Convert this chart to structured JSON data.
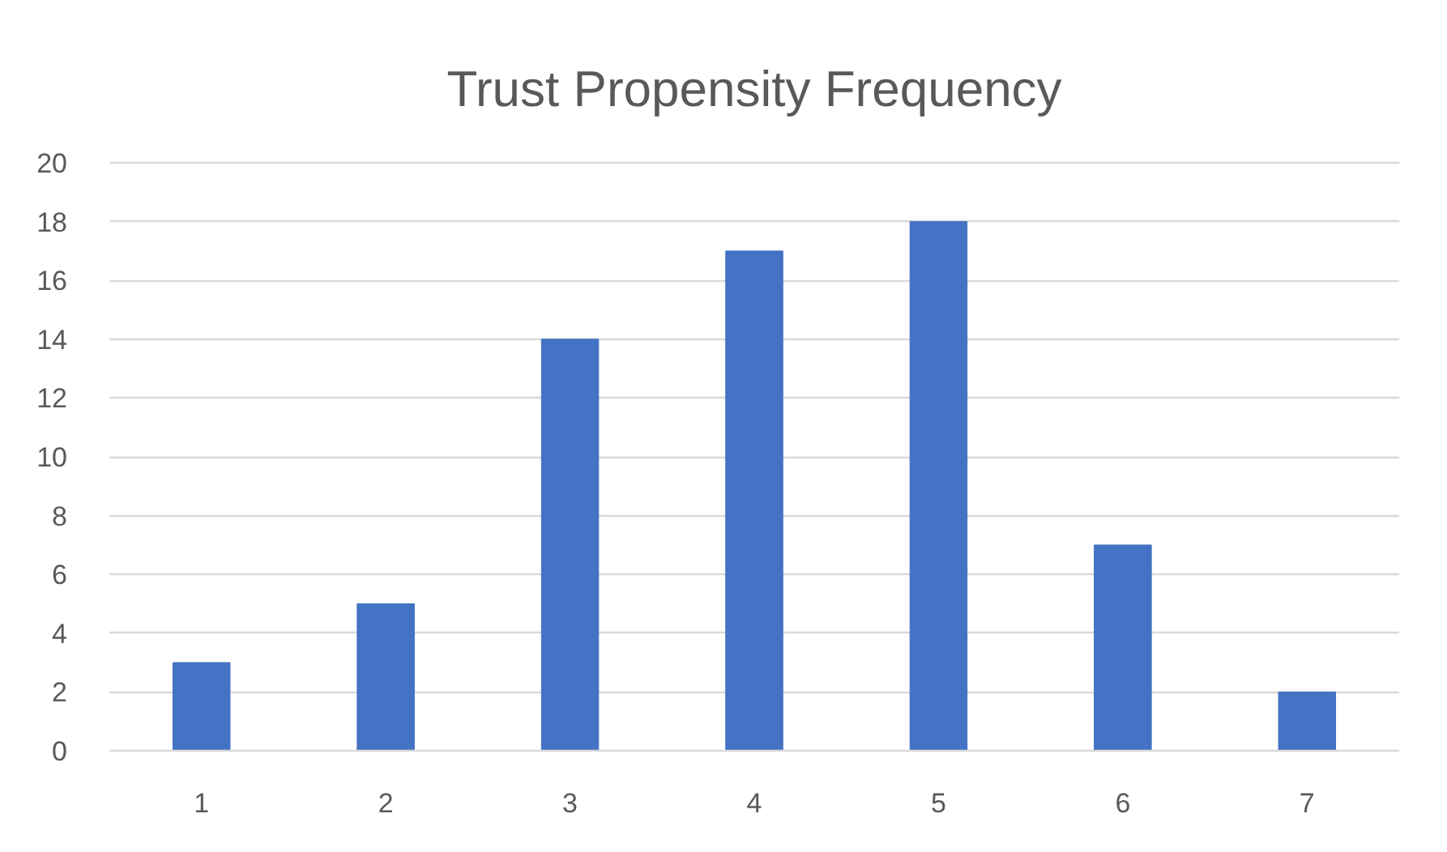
{
  "chart_data": {
    "type": "bar",
    "title": "Trust Propensity Frequency",
    "categories": [
      "1",
      "2",
      "3",
      "4",
      "5",
      "6",
      "7"
    ],
    "values": [
      3,
      5,
      14,
      17,
      18,
      7,
      2
    ],
    "color": "#4472c4",
    "ylim": [
      0,
      20
    ],
    "yticks": [
      0,
      2,
      4,
      6,
      8,
      10,
      12,
      14,
      16,
      18,
      20
    ],
    "grid": "y"
  }
}
